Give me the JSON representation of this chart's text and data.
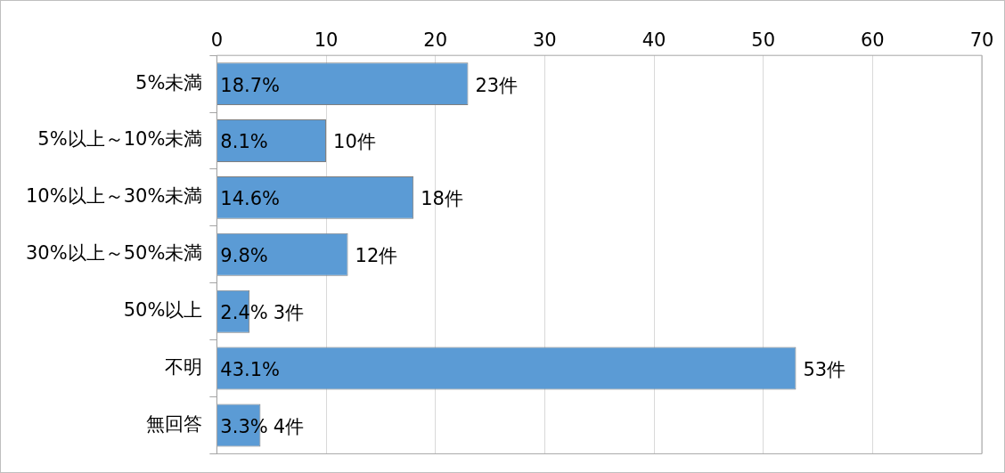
{
  "chart_data": {
    "type": "bar",
    "orientation": "horizontal",
    "categories": [
      "5%未満",
      "5%以上～10%未満",
      "10%以上～30%未満",
      "30%以上～50%未満",
      "50%以上",
      "不明",
      "無回答"
    ],
    "values": [
      23,
      10,
      18,
      12,
      3,
      53,
      4
    ],
    "color": "#5b9bd5",
    "value_labels": [
      "23件",
      "10件",
      "18件",
      "12件",
      "3件",
      "53件",
      "4件"
    ],
    "annotations": [
      {
        "text": "18.7%",
        "y": "5%未満"
      },
      {
        "text": "8.1%",
        "y": "5%以上～10%未満"
      },
      {
        "text": "14.6%",
        "y": "10%以上～30%未満"
      },
      {
        "text": "9.8%",
        "y": "30%以上～50%未満"
      },
      {
        "text": "2.4%",
        "y": "50%以上"
      },
      {
        "text": "43.1%",
        "y": "不明"
      },
      {
        "text": "3.3%",
        "y": "無回答"
      }
    ],
    "xlim": [
      0,
      70
    ],
    "xticks": [
      0,
      10,
      20,
      30,
      40,
      50,
      60,
      70
    ],
    "grid": "x",
    "legend": false
  }
}
